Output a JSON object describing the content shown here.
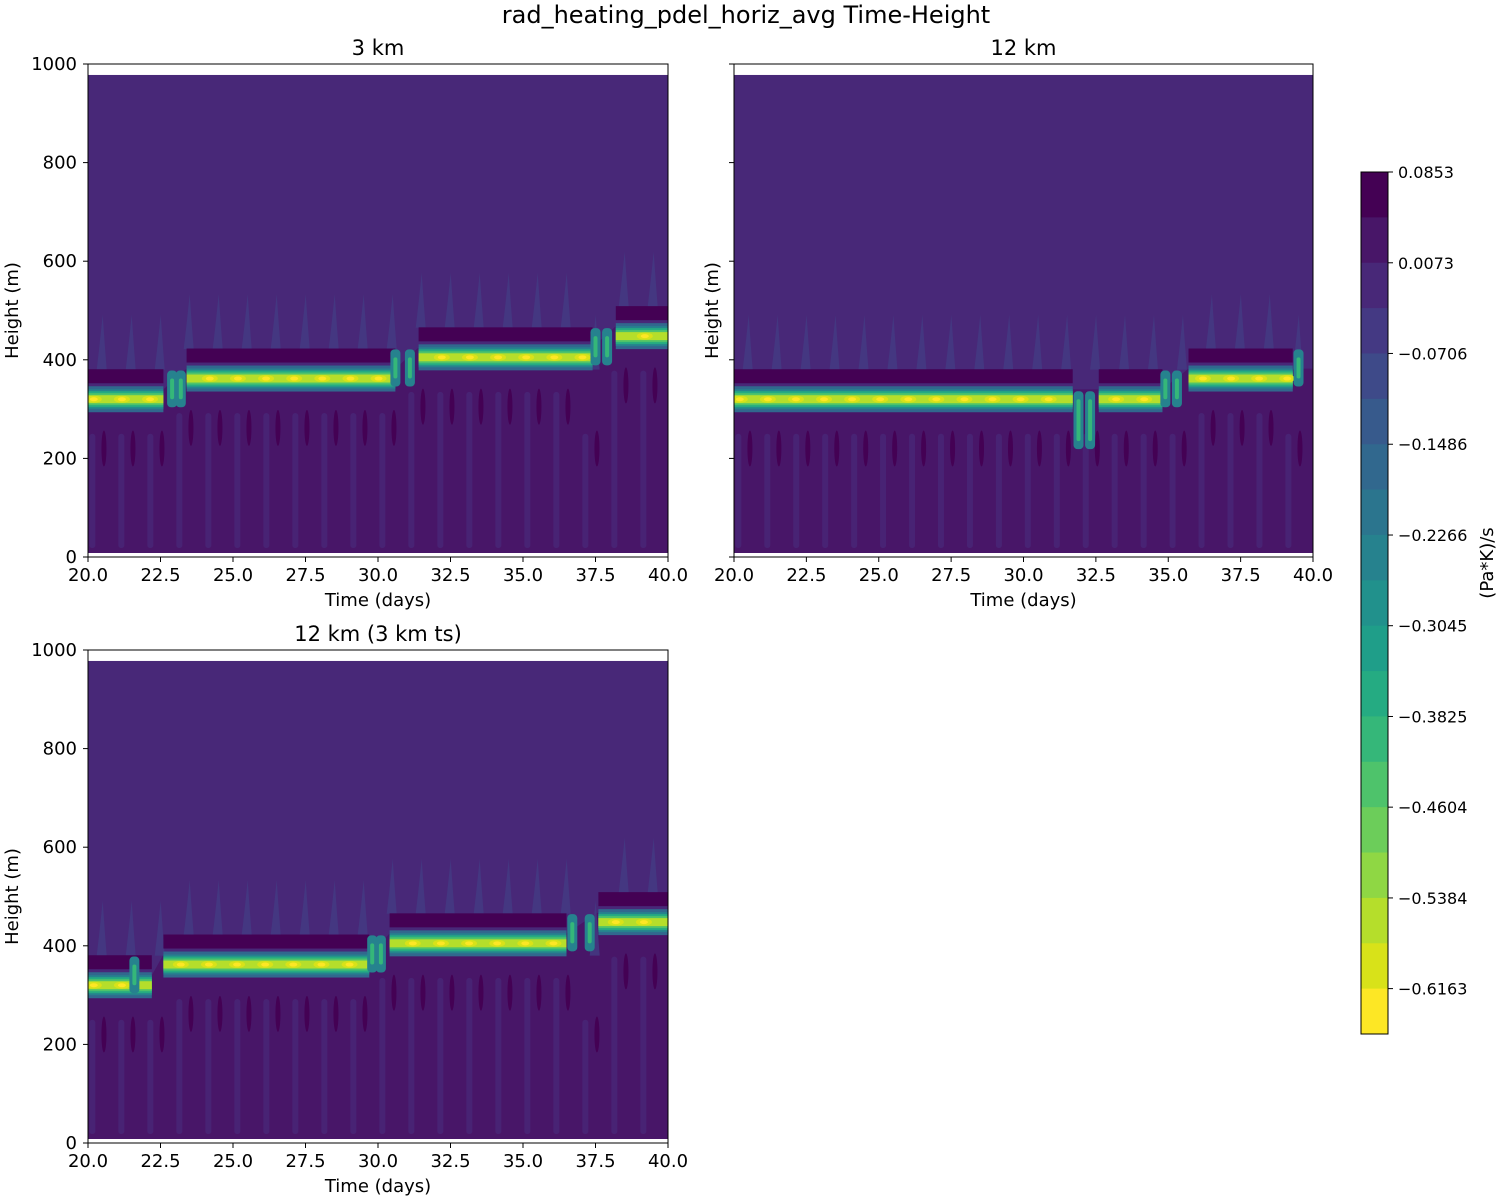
{
  "figure_title": "rad_heating_pdel_horiz_avg Time-Height",
  "chart_data": [
    {
      "type": "heatmap",
      "title": "3 km",
      "xlabel": "Time (days)",
      "ylabel": "Height (m)",
      "xlim": [
        20.0,
        40.0
      ],
      "ylim": [
        0,
        1000
      ],
      "xticks": [
        "20.0",
        "22.5",
        "25.0",
        "27.5",
        "30.0",
        "32.5",
        "35.0",
        "37.5",
        "40.0"
      ],
      "yticks": [
        "0",
        "200",
        "400",
        "600",
        "800",
        "1000"
      ],
      "show_y_ticklabels": true,
      "data_top_height": 978,
      "data_bottom_height": 8,
      "inversion_layer": [
        {
          "t_start": 20.0,
          "t_end": 22.6,
          "height": 320
        },
        {
          "t_start": 23.4,
          "t_end": 30.6,
          "height": 362
        },
        {
          "t_start": 31.4,
          "t_end": 37.4,
          "height": 405
        },
        {
          "t_start": 38.2,
          "t_end": 40.0,
          "height": 448
        }
      ],
      "transitions": [
        {
          "t": 22.9,
          "from": 320,
          "to": 362
        },
        {
          "t": 23.2,
          "from": 362,
          "to": 320
        },
        {
          "t": 30.6,
          "from": 362,
          "to": 405
        },
        {
          "t": 31.1,
          "from": 405,
          "to": 362
        },
        {
          "t": 37.5,
          "from": 405,
          "to": 448
        },
        {
          "t": 37.9,
          "from": 448,
          "to": 405
        }
      ]
    },
    {
      "type": "heatmap",
      "title": "12 km",
      "xlabel": "Time (days)",
      "ylabel": "Height (m)",
      "xlim": [
        20.0,
        40.0
      ],
      "ylim": [
        0,
        1000
      ],
      "xticks": [
        "20.0",
        "22.5",
        "25.0",
        "27.5",
        "30.0",
        "32.5",
        "35.0",
        "37.5",
        "40.0"
      ],
      "yticks": [
        "0",
        "200",
        "400",
        "600",
        "800",
        "1000"
      ],
      "show_y_ticklabels": false,
      "data_top_height": 978,
      "data_bottom_height": 8,
      "inversion_layer": [
        {
          "t_start": 20.0,
          "t_end": 31.7,
          "height": 320
        },
        {
          "t_start": 32.6,
          "t_end": 34.8,
          "height": 320
        },
        {
          "t_start": 35.7,
          "t_end": 39.3,
          "height": 362
        }
      ],
      "transitions": [
        {
          "t": 31.9,
          "from": 320,
          "to": 235
        },
        {
          "t": 32.3,
          "from": 235,
          "to": 320
        },
        {
          "t": 34.9,
          "from": 320,
          "to": 362
        },
        {
          "t": 35.3,
          "from": 362,
          "to": 320
        },
        {
          "t": 39.5,
          "from": 362,
          "to": 405
        }
      ]
    },
    {
      "type": "heatmap",
      "title": "12 km (3 km ts)",
      "xlabel": "Time (days)",
      "ylabel": "Height (m)",
      "xlim": [
        20.0,
        40.0
      ],
      "ylim": [
        0,
        1000
      ],
      "xticks": [
        "20.0",
        "22.5",
        "25.0",
        "27.5",
        "30.0",
        "32.5",
        "35.0",
        "37.5",
        "40.0"
      ],
      "yticks": [
        "0",
        "200",
        "400",
        "600",
        "800",
        "1000"
      ],
      "show_y_ticklabels": true,
      "data_top_height": 978,
      "data_bottom_height": 8,
      "inversion_layer": [
        {
          "t_start": 20.0,
          "t_end": 22.2,
          "height": 320
        },
        {
          "t_start": 22.6,
          "t_end": 29.7,
          "height": 362
        },
        {
          "t_start": 30.4,
          "t_end": 36.5,
          "height": 405
        },
        {
          "t_start": 37.6,
          "t_end": 40.0,
          "height": 448
        }
      ],
      "transitions": [
        {
          "t": 21.6,
          "from": 320,
          "to": 362
        },
        {
          "t": 29.8,
          "from": 362,
          "to": 405
        },
        {
          "t": 30.1,
          "from": 405,
          "to": 362
        },
        {
          "t": 36.7,
          "from": 405,
          "to": 448
        },
        {
          "t": 37.3,
          "from": 448,
          "to": 405
        }
      ]
    }
  ],
  "colorbar": {
    "label": "(Pa*K)/s",
    "min": -0.6553,
    "max": 0.0853,
    "levels": [
      0.0853,
      0.0463,
      0.0073,
      -0.0316,
      -0.0706,
      -0.1096,
      -0.1486,
      -0.1876,
      -0.2266,
      -0.2655,
      -0.3045,
      -0.3435,
      -0.3825,
      -0.4215,
      -0.4604,
      -0.4994,
      -0.5384,
      -0.5774,
      -0.6163,
      -0.6553
    ],
    "tick_values": [
      0.0853,
      0.0073,
      -0.0706,
      -0.1486,
      -0.2266,
      -0.3045,
      -0.3825,
      -0.4604,
      -0.5384,
      -0.6163
    ],
    "tick_labels": [
      "0.0853",
      "0.0073",
      "−0.0706",
      "−0.1486",
      "−0.2266",
      "−0.3045",
      "−0.3825",
      "−0.4604",
      "−0.5384",
      "−0.6163"
    ],
    "colors": [
      "#440154",
      "#481668",
      "#482878",
      "#443983",
      "#3e4a89",
      "#375a8c",
      "#31688e",
      "#2b758e",
      "#26828e",
      "#21918c",
      "#1f9e89",
      "#25ab82",
      "#35b779",
      "#4ec36b",
      "#6ccd5a",
      "#8fd744",
      "#b5de2b",
      "#d8e219",
      "#fde725"
    ]
  }
}
